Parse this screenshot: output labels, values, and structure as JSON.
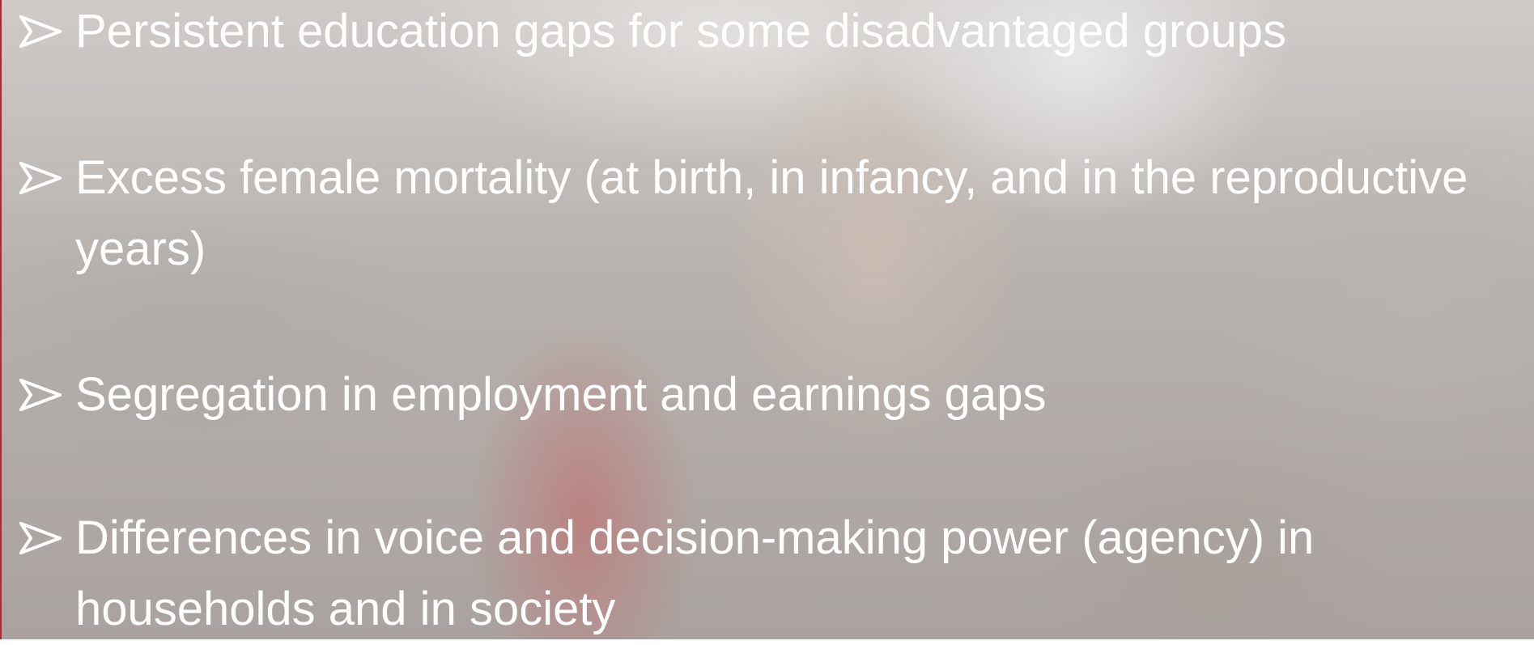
{
  "bullets": [
    "Persistent education gaps for some disadvantaged groups",
    "Excess female mortality (at birth, in infancy, and in the reproductive years)",
    "Segregation in employment and earnings gaps",
    "Differences in voice and decision-making power (agency) in households and in society"
  ]
}
